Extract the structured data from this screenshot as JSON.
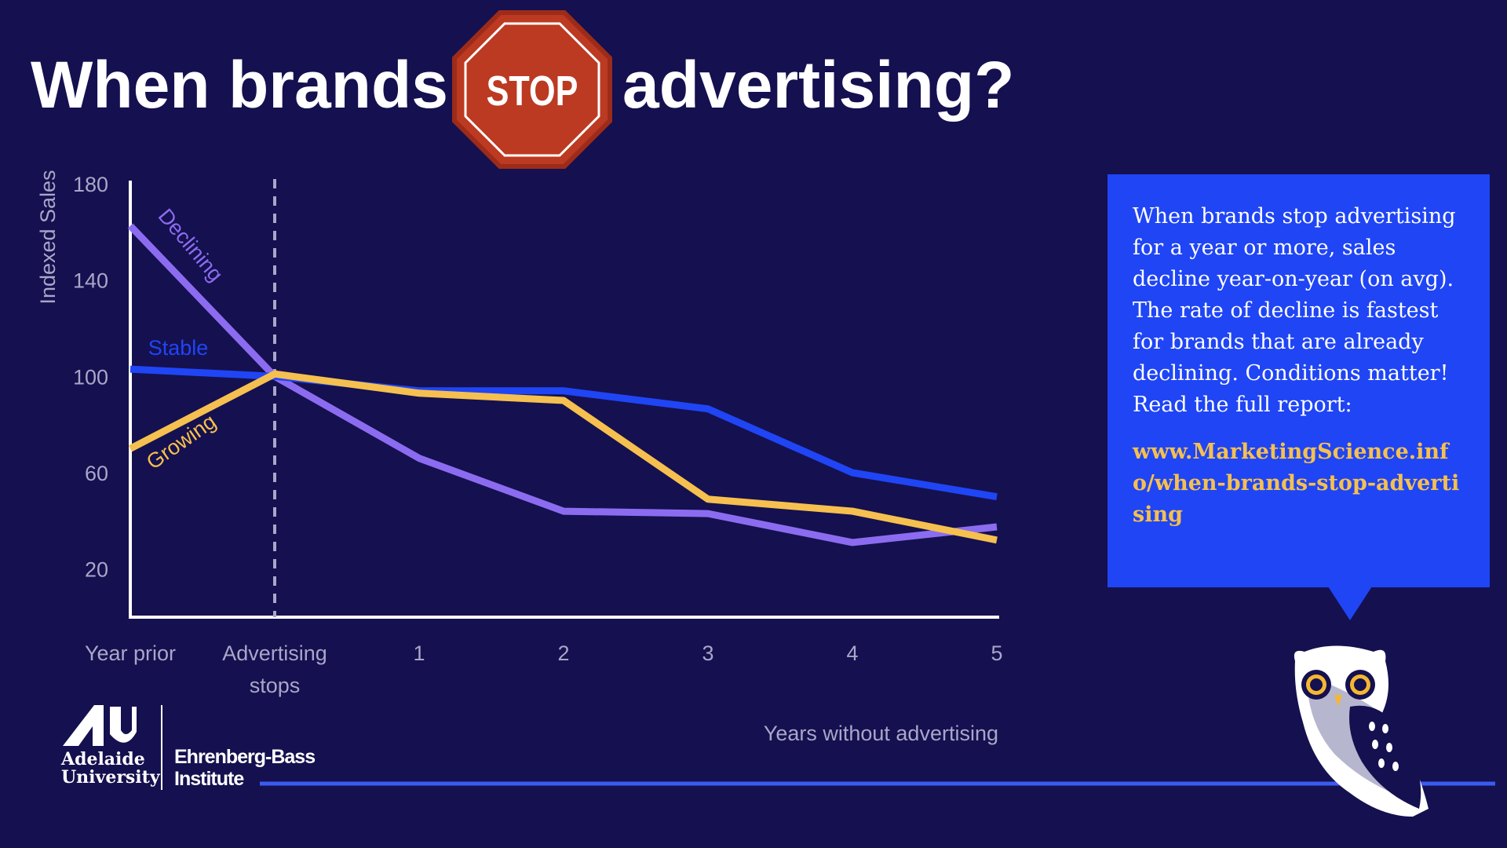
{
  "header": {
    "title_before": "When brands",
    "stop_sign": "STOP",
    "title_after": "advertising?"
  },
  "chart_data": {
    "type": "line",
    "categories": [
      "Year prior",
      "Advertising stops",
      "1",
      "2",
      "3",
      "4",
      "5"
    ],
    "x_label": "Years without advertising",
    "y_label": "Indexed Sales",
    "ylim": [
      0,
      180
    ],
    "yticks": [
      20,
      60,
      100,
      140,
      180
    ],
    "grid": false,
    "series": [
      {
        "name": "Declining",
        "color": "#8b6cf0",
        "values": [
          162.5,
          100,
          66,
          44,
          43,
          31,
          37.5
        ]
      },
      {
        "name": "Stable",
        "color": "#1f45f5",
        "values": [
          103,
          100,
          94,
          94,
          86.5,
          60,
          50
        ]
      },
      {
        "name": "Growing",
        "color": "#f5c04f",
        "values": [
          70,
          101,
          93,
          90,
          49,
          44,
          32
        ]
      }
    ]
  },
  "callout": {
    "text": "When brands stop advertising for a year or more, sales decline year-on-year (on avg). The rate of decline is fastest for brands that are already declining. Conditions matter! Read the full report:",
    "link": "www.MarketingScience.info/when-brands-stop-advertising"
  },
  "logos": {
    "university": [
      "Adelaide",
      "University"
    ],
    "institute": [
      "Ehrenberg-Bass",
      "Institute"
    ]
  }
}
